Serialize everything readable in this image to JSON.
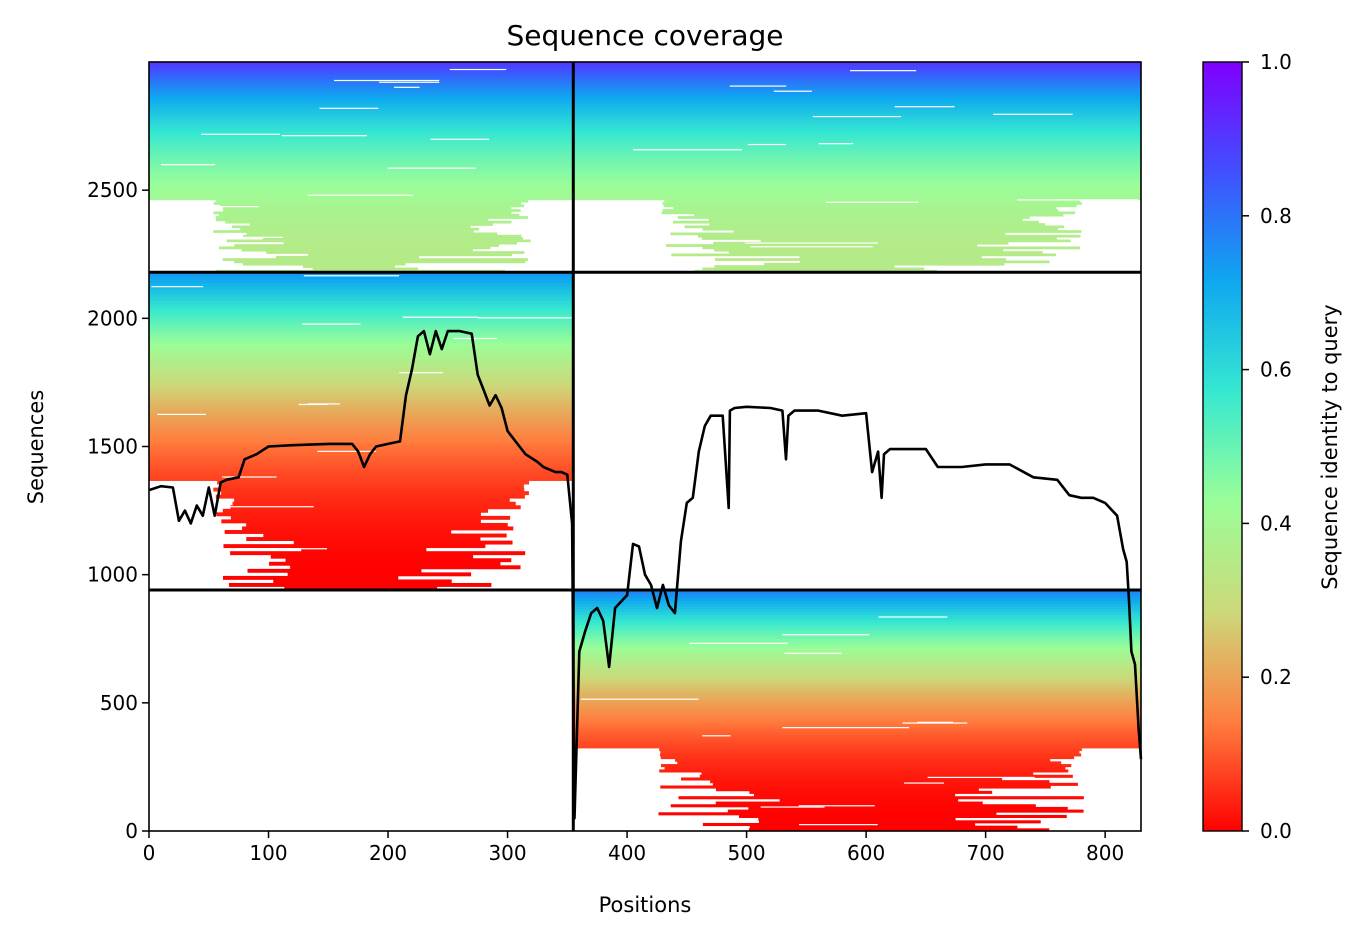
{
  "chart_data": {
    "type": "heatmap",
    "title": "Sequence coverage",
    "xlabel": "Positions",
    "ylabel": "Sequences",
    "xlim": [
      0,
      830
    ],
    "ylim": [
      0,
      3000
    ],
    "x_ticks": [
      "0",
      "100",
      "200",
      "300",
      "400",
      "500",
      "600",
      "700",
      "800"
    ],
    "y_ticks": [
      "0",
      "500",
      "1000",
      "1500",
      "2000",
      "2500"
    ],
    "colorbar": {
      "label": "Sequence identity to query",
      "range": [
        0,
        1
      ],
      "ticks": [
        "0.0",
        "0.2",
        "0.4",
        "0.6",
        "0.8",
        "1.0"
      ],
      "colormap": "rainbow",
      "stops": [
        "#ff0000",
        "#ff7f3f",
        "#ccd97a",
        "#9afe98",
        "#36e8d0",
        "#0ea8f0",
        "#4050ff",
        "#7f00ff"
      ]
    },
    "chain_boundary_x": 355,
    "block_boundaries_y": [
      940,
      2180
    ],
    "blocks": [
      {
        "name": "chain-A-deep",
        "x": [
          0,
          355
        ],
        "y": [
          940,
          2180
        ],
        "identity_top": 0.75,
        "identity_bottom": 0.0
      },
      {
        "name": "chain-A-paired",
        "x": [
          0,
          355
        ],
        "y": [
          2180,
          3000
        ],
        "identity_top": 0.9,
        "identity_bottom": 0.35
      },
      {
        "name": "chain-B-paired",
        "x": [
          355,
          830
        ],
        "y": [
          2180,
          3000
        ],
        "identity_top": 0.9,
        "identity_bottom": 0.35
      },
      {
        "name": "chain-B-deep",
        "x": [
          355,
          830
        ],
        "y": [
          0,
          940
        ],
        "identity_top": 0.78,
        "identity_bottom": 0.0
      }
    ],
    "coverage": {
      "color": "#000000",
      "x": [
        0,
        10,
        20,
        25,
        30,
        35,
        40,
        45,
        50,
        55,
        60,
        65,
        75,
        80,
        90,
        100,
        120,
        150,
        170,
        175,
        180,
        185,
        190,
        200,
        210,
        215,
        220,
        225,
        230,
        235,
        240,
        245,
        250,
        260,
        270,
        275,
        280,
        285,
        290,
        295,
        300,
        310,
        315,
        325,
        330,
        340,
        345,
        350,
        354,
        356,
        360,
        365,
        370,
        375,
        380,
        385,
        390,
        400,
        405,
        410,
        415,
        420,
        425,
        430,
        435,
        440,
        445,
        450,
        455,
        460,
        465,
        470,
        480,
        485,
        486,
        490,
        500,
        520,
        530,
        533,
        535,
        540,
        560,
        580,
        600,
        605,
        610,
        613,
        615,
        620,
        640,
        650,
        660,
        680,
        700,
        720,
        740,
        760,
        770,
        780,
        790,
        800,
        810,
        815,
        818,
        820,
        822,
        825,
        828,
        830
      ],
      "y": [
        1330,
        1345,
        1340,
        1210,
        1250,
        1200,
        1270,
        1230,
        1340,
        1230,
        1360,
        1370,
        1380,
        1450,
        1470,
        1500,
        1505,
        1510,
        1510,
        1480,
        1420,
        1470,
        1500,
        1510,
        1520,
        1700,
        1800,
        1930,
        1950,
        1860,
        1950,
        1880,
        1950,
        1950,
        1940,
        1780,
        1720,
        1660,
        1700,
        1650,
        1560,
        1500,
        1470,
        1440,
        1420,
        1400,
        1400,
        1390,
        1200,
        50,
        700,
        780,
        850,
        870,
        820,
        640,
        870,
        920,
        1120,
        1110,
        1000,
        960,
        870,
        960,
        880,
        850,
        1130,
        1280,
        1300,
        1480,
        1580,
        1620,
        1620,
        1260,
        1640,
        1650,
        1655,
        1650,
        1640,
        1450,
        1620,
        1640,
        1640,
        1620,
        1630,
        1400,
        1480,
        1300,
        1470,
        1490,
        1490,
        1490,
        1420,
        1420,
        1430,
        1430,
        1380,
        1370,
        1310,
        1300,
        1300,
        1280,
        1230,
        1100,
        1050,
        900,
        700,
        650,
        400,
        280
      ]
    }
  }
}
